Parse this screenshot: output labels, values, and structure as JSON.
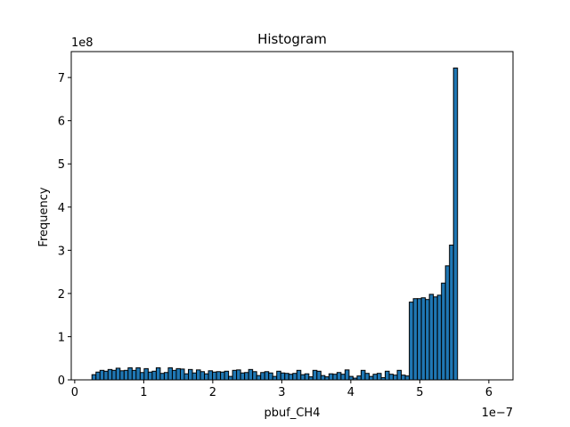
{
  "chart_data": {
    "type": "bar",
    "title": "Histogram",
    "xlabel": "pbuf_CH4",
    "ylabel": "Frequency",
    "x_scale_label": "1e−7",
    "y_scale_label": "1e8",
    "xlim": [
      -0.05,
      6.35
    ],
    "ylim": [
      0,
      7.6
    ],
    "x_ticks": [
      0,
      1,
      2,
      3,
      4,
      5,
      6
    ],
    "x_tick_labels": [
      "0",
      "1",
      "2",
      "3",
      "4",
      "5",
      "6"
    ],
    "y_ticks": [
      0,
      1,
      2,
      3,
      4,
      5,
      6,
      7
    ],
    "y_tick_labels": [
      "0",
      "1",
      "2",
      "3",
      "4",
      "5",
      "6",
      "7"
    ],
    "bin_start": 0.25,
    "bin_width": 0.0582,
    "bar_color": "#1f77b4",
    "values": [
      0.12,
      0.18,
      0.22,
      0.2,
      0.24,
      0.22,
      0.27,
      0.21,
      0.22,
      0.28,
      0.22,
      0.28,
      0.17,
      0.26,
      0.18,
      0.2,
      0.28,
      0.15,
      0.17,
      0.28,
      0.22,
      0.26,
      0.25,
      0.14,
      0.24,
      0.16,
      0.23,
      0.19,
      0.14,
      0.21,
      0.18,
      0.19,
      0.18,
      0.2,
      0.08,
      0.22,
      0.23,
      0.16,
      0.17,
      0.24,
      0.19,
      0.1,
      0.17,
      0.19,
      0.16,
      0.08,
      0.2,
      0.16,
      0.15,
      0.13,
      0.15,
      0.22,
      0.12,
      0.14,
      0.07,
      0.22,
      0.2,
      0.1,
      0.07,
      0.14,
      0.13,
      0.17,
      0.13,
      0.23,
      0.08,
      0.04,
      0.09,
      0.22,
      0.15,
      0.08,
      0.13,
      0.15,
      0.05,
      0.2,
      0.13,
      0.11,
      0.22,
      0.11,
      0.09,
      1.8,
      1.88,
      1.88,
      1.9,
      1.86,
      1.98,
      1.92,
      1.96,
      2.24,
      2.64,
      3.12,
      7.22
    ]
  }
}
